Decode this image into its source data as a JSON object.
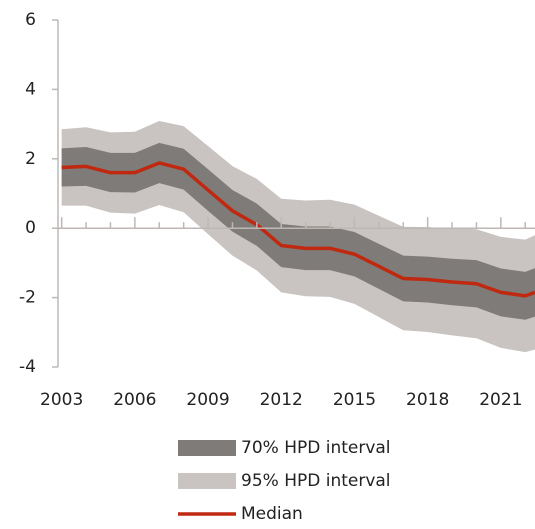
{
  "chart_data": {
    "type": "band-line",
    "x": [
      2003,
      2004,
      2005,
      2006,
      2007,
      2008,
      2009,
      2010,
      2011,
      2012,
      2013,
      2014,
      2015,
      2016,
      2017,
      2018,
      2019,
      2020,
      2021,
      2022,
      2022.4
    ],
    "series": [
      {
        "name": "95% HPD interval",
        "kind": "band",
        "color": "#c9c4c1",
        "lower": [
          0.65,
          0.65,
          0.45,
          0.42,
          0.67,
          0.46,
          -0.17,
          -0.79,
          -1.22,
          -1.85,
          -1.96,
          -1.98,
          -2.18,
          -2.56,
          -2.94,
          -2.99,
          -3.09,
          -3.17,
          -3.45,
          -3.57,
          -3.5
        ],
        "upper": [
          2.85,
          2.91,
          2.76,
          2.78,
          3.09,
          2.94,
          2.37,
          1.79,
          1.42,
          0.85,
          0.8,
          0.82,
          0.68,
          0.36,
          0.04,
          0.03,
          -0.01,
          -0.03,
          -0.25,
          -0.33,
          -0.2
        ]
      },
      {
        "name": "70% HPD interval",
        "kind": "band",
        "color": "#7e7b78",
        "lower": [
          1.2,
          1.22,
          1.04,
          1.03,
          1.3,
          1.11,
          0.5,
          -0.1,
          -0.51,
          -1.12,
          -1.21,
          -1.21,
          -1.39,
          -1.75,
          -2.11,
          -2.14,
          -2.22,
          -2.28,
          -2.54,
          -2.64,
          -2.55
        ],
        "upper": [
          2.3,
          2.34,
          2.17,
          2.17,
          2.46,
          2.29,
          1.7,
          1.1,
          0.71,
          0.12,
          0.05,
          0.05,
          -0.11,
          -0.45,
          -0.79,
          -0.82,
          -0.88,
          -0.92,
          -1.16,
          -1.26,
          -1.15
        ]
      },
      {
        "name": "Median",
        "kind": "line",
        "color": "#c0280f",
        "values": [
          1.75,
          1.78,
          1.6,
          1.6,
          1.88,
          1.7,
          1.1,
          0.5,
          0.1,
          -0.5,
          -0.58,
          -0.58,
          -0.75,
          -1.1,
          -1.45,
          -1.48,
          -1.55,
          -1.6,
          -1.85,
          -1.95,
          -1.85
        ]
      }
    ],
    "xlim": [
      2002.85,
      2022.4
    ],
    "xticks": [
      2003,
      2006,
      2009,
      2012,
      2015,
      2018,
      2021
    ],
    "xminorticks": [
      2004,
      2005,
      2007,
      2008,
      2010,
      2011,
      2013,
      2014,
      2016,
      2017,
      2019,
      2020,
      2022
    ],
    "ylim": [
      -4,
      6
    ],
    "yticks": [
      -4,
      -2,
      0,
      2,
      4,
      6
    ]
  }
}
